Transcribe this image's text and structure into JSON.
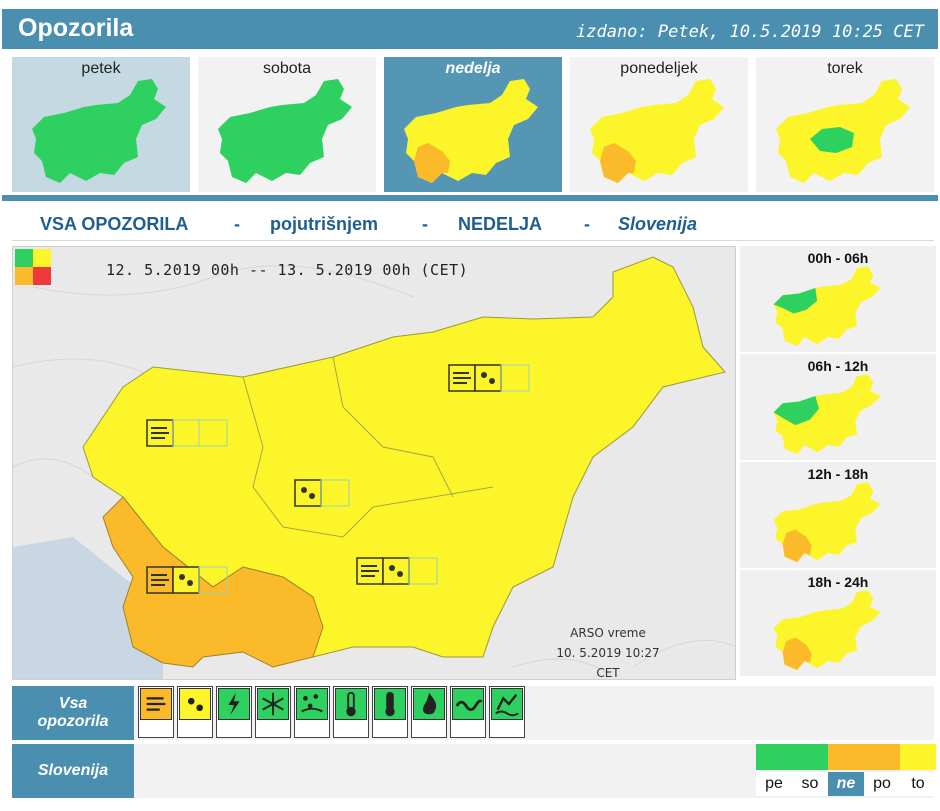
{
  "header": {
    "title": "Opozorila",
    "issued": "izdano: Petek, 10.5.2019 10:25 CET"
  },
  "days": [
    {
      "label": "petek",
      "levels": [
        "green",
        "green",
        "green",
        "green",
        "green"
      ]
    },
    {
      "label": "sobota",
      "levels": [
        "green",
        "green",
        "green",
        "green",
        "green"
      ]
    },
    {
      "label": "nedelja",
      "levels": [
        "yellow",
        "yellow",
        "yellow",
        "orange",
        "yellow"
      ],
      "selected": true
    },
    {
      "label": "ponedeljek",
      "levels": [
        "yellow",
        "yellow",
        "yellow",
        "orange",
        "yellow"
      ]
    },
    {
      "label": "torek",
      "levels": [
        "yellow",
        "yellow",
        "green",
        "yellow",
        "yellow"
      ]
    }
  ],
  "subtitle": {
    "part1": "VSA OPOZORILA",
    "sep": "-",
    "part2": "pojutrišnjem",
    "part3": "NEDELJA",
    "part4": "Slovenija"
  },
  "map": {
    "range": "12. 5.2019  00h  --  13. 5.2019  00h    (CET)",
    "credit_line1": "ARSO vreme",
    "credit_line2": "10. 5.2019  10:27 CET"
  },
  "periods": [
    {
      "label": "00h - 06h",
      "levels": [
        "yellow",
        "green",
        "yellow",
        "yellow",
        "yellow"
      ]
    },
    {
      "label": "06h - 12h",
      "levels": [
        "yellow",
        "green",
        "yellow",
        "yellow",
        "yellow"
      ]
    },
    {
      "label": "12h - 18h",
      "levels": [
        "yellow",
        "yellow",
        "yellow",
        "orange",
        "yellow"
      ]
    },
    {
      "label": "18h - 24h",
      "levels": [
        "yellow",
        "yellow",
        "yellow",
        "orange",
        "yellow"
      ]
    }
  ],
  "all_warnings": {
    "label_line1": "Vsa",
    "label_line2": "opozorila",
    "types": [
      {
        "icon": "wind-icon",
        "level": "orange"
      },
      {
        "icon": "rain-icon",
        "level": "yellow"
      },
      {
        "icon": "thunderstorm-icon",
        "level": "green"
      },
      {
        "icon": "snow-icon",
        "level": "green"
      },
      {
        "icon": "fog-ice-icon",
        "level": "green"
      },
      {
        "icon": "low-temperature-icon",
        "level": "green"
      },
      {
        "icon": "high-temperature-icon",
        "level": "green"
      },
      {
        "icon": "fire-icon",
        "level": "green"
      },
      {
        "icon": "coastal-wave-icon",
        "level": "green"
      },
      {
        "icon": "flood-icon",
        "level": "green"
      }
    ]
  },
  "slovenia_row": {
    "label": "Slovenija",
    "day_legend": [
      {
        "text": "pe",
        "level": "green"
      },
      {
        "text": "so",
        "level": "green"
      },
      {
        "text": "ne",
        "level": "orange",
        "selected": true
      },
      {
        "text": "po",
        "level": "orange"
      },
      {
        "text": "to",
        "level": "yellow"
      }
    ]
  },
  "colors": {
    "green": "#2ed15f",
    "yellow": "#fbf52a",
    "orange": "#fbba2a",
    "red": "#ee3a3a",
    "accent": "#4a8fb0",
    "selected_day": "#5596b4"
  }
}
